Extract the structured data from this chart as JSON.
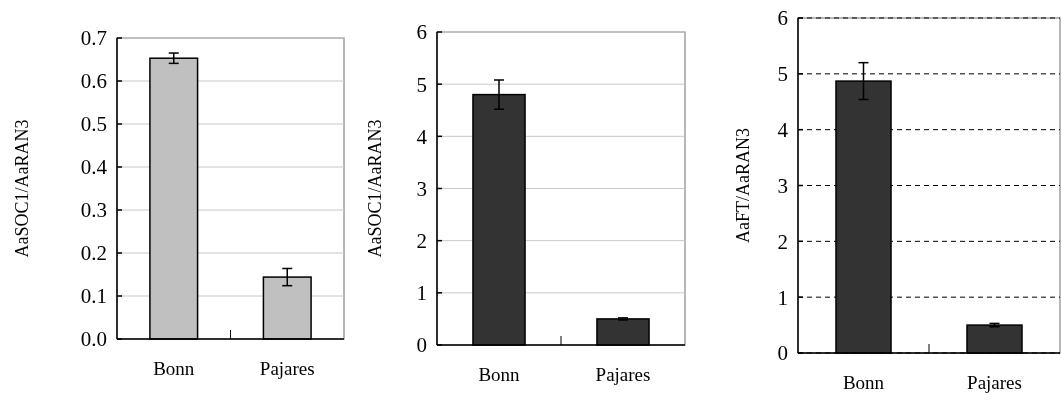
{
  "chart_data": [
    {
      "type": "bar",
      "ylabel": "AaSOC1/AaRAN3",
      "categories": [
        "Bonn",
        "Pajares"
      ],
      "values": [
        0.653,
        0.144
      ],
      "errors": [
        0.012,
        0.02
      ],
      "color": "#c0c0c0",
      "ylim": [
        0,
        0.7
      ],
      "yticks": [
        {
          "value": 0,
          "label": "0.0"
        },
        0.1,
        0.2,
        0.3,
        0.4,
        0.5,
        0.6,
        0.7
      ],
      "grid": "y"
    },
    {
      "type": "bar",
      "ylabel": "AaSOC1/AaRAN3",
      "categories": [
        "Bonn",
        "Pajares"
      ],
      "values": [
        4.8,
        0.5
      ],
      "errors": [
        0.28,
        0.02
      ],
      "color": "#333333",
      "ylim": [
        0,
        6
      ],
      "yticks": [
        0,
        1,
        2,
        3,
        4,
        5,
        6
      ],
      "grid": "y"
    },
    {
      "type": "bar",
      "ylabel": "AaFT/AaRAN3",
      "categories": [
        "Bonn",
        "Pajares"
      ],
      "values": [
        4.87,
        0.5
      ],
      "errors": [
        0.33,
        0.03
      ],
      "color": "#333333",
      "ylim": [
        0,
        6
      ],
      "yticks": [
        0,
        1,
        2,
        3,
        4,
        5,
        6
      ],
      "grid": "y"
    }
  ]
}
